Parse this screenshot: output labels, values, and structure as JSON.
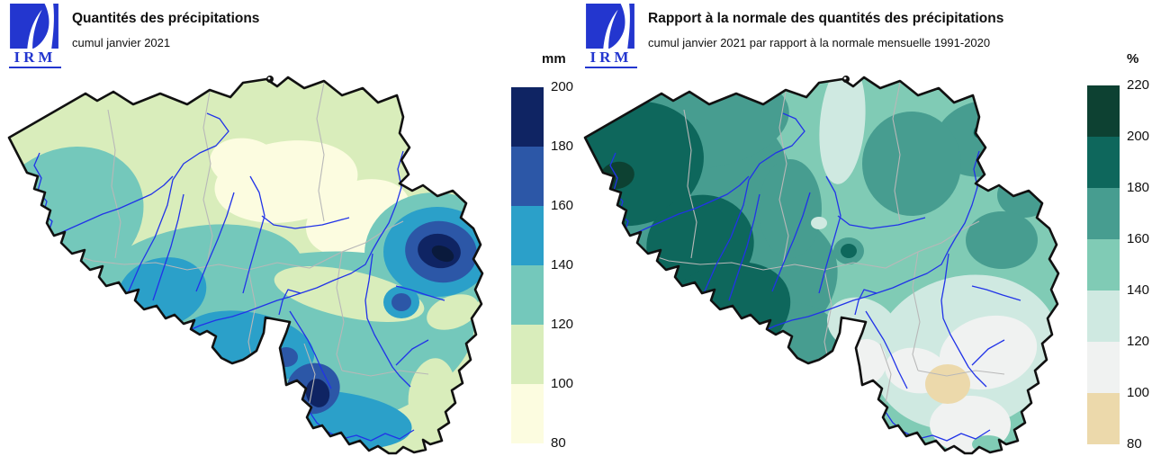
{
  "map_region": "Belgium",
  "panels": [
    {
      "logo": {
        "text": "IRM",
        "color": "#2336cf"
      },
      "title": "Quantités des précipitations",
      "subtitle": "cumul janvier 2021",
      "legend": {
        "unit": "mm",
        "tick_labels": [
          "200",
          "180",
          "160",
          "140",
          "120",
          "100",
          "80"
        ],
        "band_colors_top_to_bottom": [
          "#0f2463",
          "#2c57a7",
          "#2ba0c9",
          "#74c8bb",
          "#d9edbb",
          "#fcfce0"
        ],
        "band_ranges_mm": [
          "180-200",
          "160-180",
          "140-160",
          "120-140",
          "100-120",
          "80-100"
        ]
      }
    },
    {
      "logo": {
        "text": "IRM",
        "color": "#2336cf"
      },
      "title": "Rapport à la normale des quantités des précipitations",
      "subtitle": "cumul janvier 2021 par rapport à la normale mensuelle 1991-2020",
      "legend": {
        "unit": "%",
        "tick_labels": [
          "220",
          "200",
          "180",
          "160",
          "140",
          "120",
          "100",
          "80"
        ],
        "band_colors_top_to_bottom": [
          "#0d4132",
          "#0e675c",
          "#479d90",
          "#80cbb5",
          "#cfe9e1",
          "#f0f2f1",
          "#ecd9ab"
        ],
        "band_ranges_percent": [
          "200-220",
          "180-200",
          "160-180",
          "140-160",
          "120-140",
          "100-120",
          "80-100"
        ]
      }
    }
  ],
  "map_colors": {
    "country_border": "#111111",
    "province_borders": "#b8b8b8",
    "rivers": "#2133e8",
    "outside": "#ffffff",
    "precip_over_scale_max": "#0a1a3c"
  }
}
